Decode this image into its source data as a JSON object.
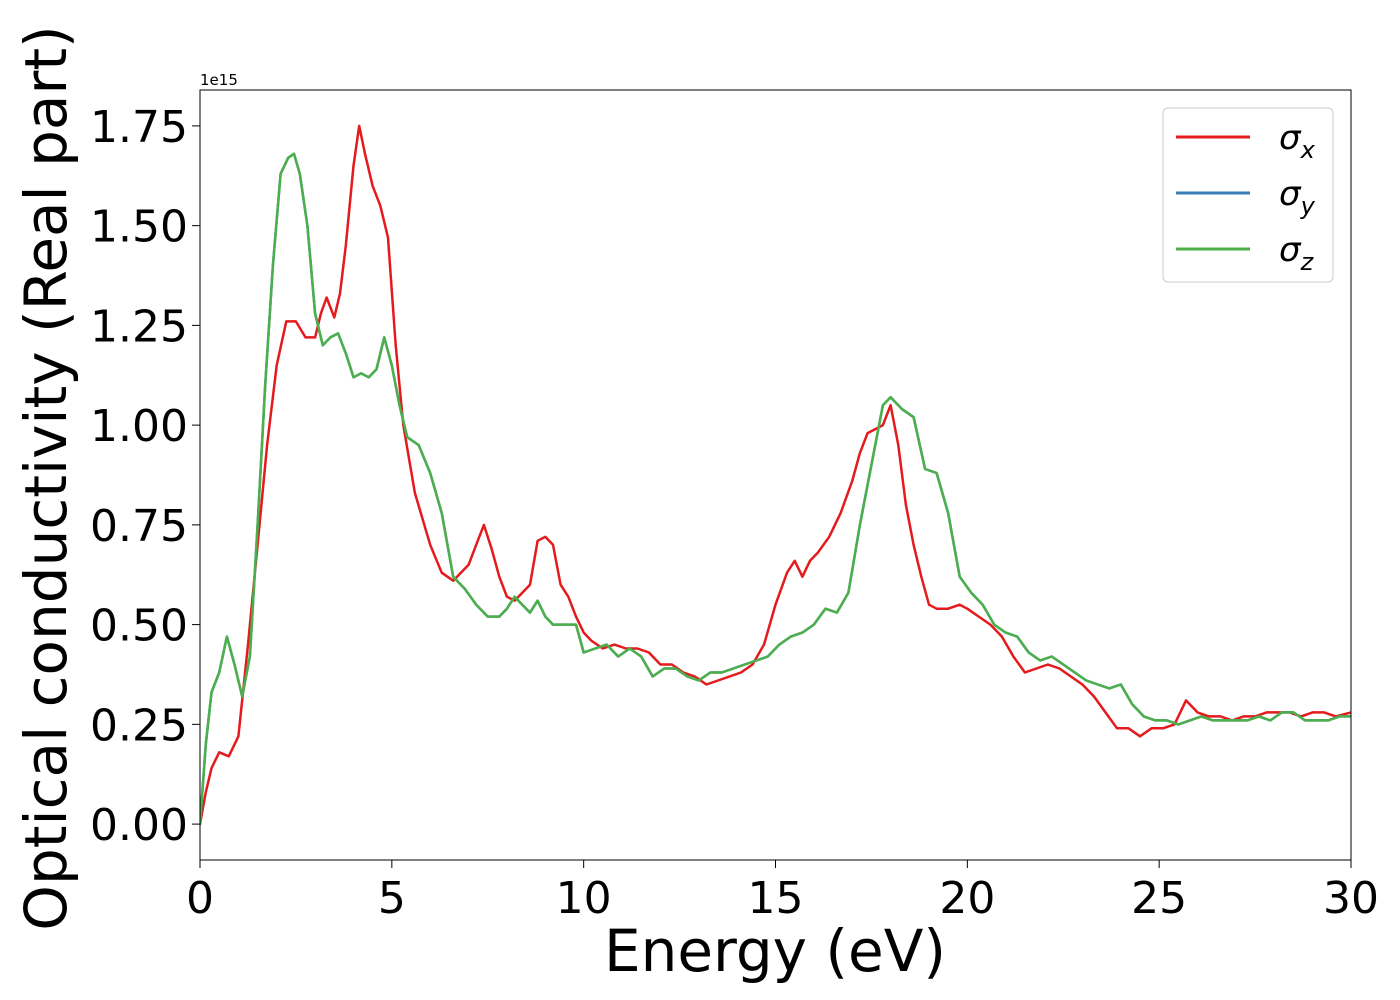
{
  "chart_data": {
    "type": "line",
    "title": "",
    "xlabel": "Energy (eV)",
    "ylabel": "Optical conductivity (Real part)",
    "y_offset_label": "1e15",
    "xlim": [
      0,
      30
    ],
    "ylim": [
      -0.09,
      1.84
    ],
    "x_ticks": [
      0,
      5,
      10,
      15,
      20,
      25,
      30
    ],
    "x_tick_labels": [
      "0",
      "5",
      "10",
      "15",
      "20",
      "25",
      "30"
    ],
    "y_ticks": [
      0.0,
      0.25,
      0.5,
      0.75,
      1.0,
      1.25,
      1.5,
      1.75
    ],
    "y_tick_labels": [
      "0.00",
      "0.25",
      "0.50",
      "0.75",
      "1.00",
      "1.25",
      "1.50",
      "1.75"
    ],
    "grid": false,
    "legend_position": "top-right",
    "series": [
      {
        "name": "σ",
        "subscript": "x",
        "color": "#e41a1c",
        "x": [
          0,
          0.15,
          0.3,
          0.5,
          0.75,
          1.0,
          1.25,
          1.5,
          1.75,
          2.0,
          2.25,
          2.5,
          2.75,
          3.0,
          3.15,
          3.3,
          3.5,
          3.65,
          3.8,
          4.0,
          4.15,
          4.3,
          4.5,
          4.7,
          4.9,
          5.1,
          5.3,
          5.6,
          6.0,
          6.3,
          6.6,
          7.0,
          7.2,
          7.4,
          7.6,
          7.8,
          8.0,
          8.2,
          8.4,
          8.6,
          8.8,
          9.0,
          9.2,
          9.4,
          9.6,
          9.8,
          10.0,
          10.2,
          10.5,
          10.8,
          11.1,
          11.4,
          11.7,
          12.0,
          12.3,
          12.6,
          12.9,
          13.2,
          13.5,
          13.8,
          14.1,
          14.4,
          14.7,
          15.0,
          15.3,
          15.5,
          15.7,
          15.9,
          16.1,
          16.4,
          16.7,
          17.0,
          17.2,
          17.4,
          17.6,
          17.8,
          18.0,
          18.2,
          18.4,
          18.6,
          18.8,
          19.0,
          19.2,
          19.5,
          19.8,
          20.0,
          20.3,
          20.6,
          20.9,
          21.2,
          21.5,
          21.8,
          22.1,
          22.4,
          22.7,
          23.0,
          23.3,
          23.6,
          23.9,
          24.2,
          24.5,
          24.8,
          25.1,
          25.4,
          25.7,
          26.0,
          26.3,
          26.6,
          26.9,
          27.2,
          27.5,
          27.8,
          28.1,
          28.4,
          28.7,
          29.0,
          29.3,
          29.6,
          30.0
        ],
        "values": [
          0.0,
          0.08,
          0.14,
          0.18,
          0.17,
          0.22,
          0.45,
          0.7,
          0.95,
          1.15,
          1.26,
          1.26,
          1.22,
          1.22,
          1.28,
          1.32,
          1.27,
          1.33,
          1.45,
          1.65,
          1.75,
          1.68,
          1.6,
          1.55,
          1.47,
          1.2,
          1.0,
          0.83,
          0.7,
          0.63,
          0.61,
          0.65,
          0.7,
          0.75,
          0.69,
          0.62,
          0.57,
          0.56,
          0.58,
          0.6,
          0.71,
          0.72,
          0.7,
          0.6,
          0.57,
          0.52,
          0.48,
          0.46,
          0.44,
          0.45,
          0.44,
          0.44,
          0.43,
          0.4,
          0.4,
          0.38,
          0.37,
          0.35,
          0.36,
          0.37,
          0.38,
          0.4,
          0.45,
          0.55,
          0.63,
          0.66,
          0.62,
          0.66,
          0.68,
          0.72,
          0.78,
          0.86,
          0.93,
          0.98,
          0.99,
          1.0,
          1.05,
          0.95,
          0.8,
          0.7,
          0.62,
          0.55,
          0.54,
          0.54,
          0.55,
          0.54,
          0.52,
          0.5,
          0.47,
          0.42,
          0.38,
          0.39,
          0.4,
          0.39,
          0.37,
          0.35,
          0.32,
          0.28,
          0.24,
          0.24,
          0.22,
          0.24,
          0.24,
          0.25,
          0.31,
          0.28,
          0.27,
          0.27,
          0.26,
          0.27,
          0.27,
          0.28,
          0.28,
          0.28,
          0.27,
          0.28,
          0.28,
          0.27,
          0.28
        ]
      },
      {
        "name": "σ",
        "subscript": "y",
        "color": "#377eb8",
        "x": [
          0,
          0.15,
          0.3,
          0.5,
          0.7,
          0.9,
          1.1,
          1.3,
          1.5,
          1.7,
          1.9,
          2.1,
          2.3,
          2.45,
          2.6,
          2.8,
          3.0,
          3.2,
          3.4,
          3.6,
          3.8,
          4.0,
          4.2,
          4.4,
          4.6,
          4.8,
          5.0,
          5.2,
          5.4,
          5.7,
          6.0,
          6.3,
          6.6,
          6.9,
          7.2,
          7.5,
          7.8,
          8.0,
          8.2,
          8.4,
          8.6,
          8.8,
          9.0,
          9.2,
          9.5,
          9.8,
          10.0,
          10.3,
          10.6,
          10.9,
          11.2,
          11.5,
          11.8,
          12.1,
          12.4,
          12.7,
          13.0,
          13.3,
          13.6,
          13.9,
          14.2,
          14.5,
          14.8,
          15.1,
          15.4,
          15.7,
          16.0,
          16.3,
          16.6,
          16.9,
          17.2,
          17.5,
          17.8,
          18.0,
          18.3,
          18.6,
          18.9,
          19.2,
          19.5,
          19.8,
          20.1,
          20.4,
          20.7,
          21.0,
          21.3,
          21.6,
          21.9,
          22.2,
          22.5,
          22.8,
          23.1,
          23.4,
          23.7,
          24.0,
          24.3,
          24.6,
          24.9,
          25.2,
          25.5,
          25.8,
          26.1,
          26.4,
          26.7,
          27.0,
          27.3,
          27.6,
          27.9,
          28.2,
          28.5,
          28.8,
          29.1,
          29.4,
          29.7,
          30.0
        ],
        "values": [
          0.0,
          0.2,
          0.33,
          0.38,
          0.47,
          0.4,
          0.32,
          0.42,
          0.75,
          1.1,
          1.4,
          1.63,
          1.67,
          1.68,
          1.63,
          1.5,
          1.28,
          1.2,
          1.22,
          1.23,
          1.18,
          1.12,
          1.13,
          1.12,
          1.14,
          1.22,
          1.15,
          1.05,
          0.97,
          0.95,
          0.88,
          0.78,
          0.62,
          0.59,
          0.55,
          0.52,
          0.52,
          0.54,
          0.57,
          0.55,
          0.53,
          0.56,
          0.52,
          0.5,
          0.5,
          0.5,
          0.43,
          0.44,
          0.45,
          0.42,
          0.44,
          0.42,
          0.37,
          0.39,
          0.39,
          0.37,
          0.36,
          0.38,
          0.38,
          0.39,
          0.4,
          0.41,
          0.42,
          0.45,
          0.47,
          0.48,
          0.5,
          0.54,
          0.53,
          0.58,
          0.75,
          0.9,
          1.05,
          1.07,
          1.04,
          1.02,
          0.89,
          0.88,
          0.78,
          0.62,
          0.58,
          0.55,
          0.5,
          0.48,
          0.47,
          0.43,
          0.41,
          0.42,
          0.4,
          0.38,
          0.36,
          0.35,
          0.34,
          0.35,
          0.3,
          0.27,
          0.26,
          0.26,
          0.25,
          0.26,
          0.27,
          0.26,
          0.26,
          0.26,
          0.26,
          0.27,
          0.26,
          0.28,
          0.28,
          0.26,
          0.26,
          0.26,
          0.27,
          0.27
        ]
      },
      {
        "name": "σ",
        "subscript": "z",
        "color": "#4daf4a",
        "x": [
          0,
          0.15,
          0.3,
          0.5,
          0.7,
          0.9,
          1.1,
          1.3,
          1.5,
          1.7,
          1.9,
          2.1,
          2.3,
          2.45,
          2.6,
          2.8,
          3.0,
          3.2,
          3.4,
          3.6,
          3.8,
          4.0,
          4.2,
          4.4,
          4.6,
          4.8,
          5.0,
          5.2,
          5.4,
          5.7,
          6.0,
          6.3,
          6.6,
          6.9,
          7.2,
          7.5,
          7.8,
          8.0,
          8.2,
          8.4,
          8.6,
          8.8,
          9.0,
          9.2,
          9.5,
          9.8,
          10.0,
          10.3,
          10.6,
          10.9,
          11.2,
          11.5,
          11.8,
          12.1,
          12.4,
          12.7,
          13.0,
          13.3,
          13.6,
          13.9,
          14.2,
          14.5,
          14.8,
          15.1,
          15.4,
          15.7,
          16.0,
          16.3,
          16.6,
          16.9,
          17.2,
          17.5,
          17.8,
          18.0,
          18.3,
          18.6,
          18.9,
          19.2,
          19.5,
          19.8,
          20.1,
          20.4,
          20.7,
          21.0,
          21.3,
          21.6,
          21.9,
          22.2,
          22.5,
          22.8,
          23.1,
          23.4,
          23.7,
          24.0,
          24.3,
          24.6,
          24.9,
          25.2,
          25.5,
          25.8,
          26.1,
          26.4,
          26.7,
          27.0,
          27.3,
          27.6,
          27.9,
          28.2,
          28.5,
          28.8,
          29.1,
          29.4,
          29.7,
          30.0
        ],
        "values": [
          0.0,
          0.2,
          0.33,
          0.38,
          0.47,
          0.4,
          0.32,
          0.42,
          0.75,
          1.1,
          1.4,
          1.63,
          1.67,
          1.68,
          1.63,
          1.5,
          1.28,
          1.2,
          1.22,
          1.23,
          1.18,
          1.12,
          1.13,
          1.12,
          1.14,
          1.22,
          1.15,
          1.05,
          0.97,
          0.95,
          0.88,
          0.78,
          0.62,
          0.59,
          0.55,
          0.52,
          0.52,
          0.54,
          0.57,
          0.55,
          0.53,
          0.56,
          0.52,
          0.5,
          0.5,
          0.5,
          0.43,
          0.44,
          0.45,
          0.42,
          0.44,
          0.42,
          0.37,
          0.39,
          0.39,
          0.37,
          0.36,
          0.38,
          0.38,
          0.39,
          0.4,
          0.41,
          0.42,
          0.45,
          0.47,
          0.48,
          0.5,
          0.54,
          0.53,
          0.58,
          0.75,
          0.9,
          1.05,
          1.07,
          1.04,
          1.02,
          0.89,
          0.88,
          0.78,
          0.62,
          0.58,
          0.55,
          0.5,
          0.48,
          0.47,
          0.43,
          0.41,
          0.42,
          0.4,
          0.38,
          0.36,
          0.35,
          0.34,
          0.35,
          0.3,
          0.27,
          0.26,
          0.26,
          0.25,
          0.26,
          0.27,
          0.26,
          0.26,
          0.26,
          0.26,
          0.27,
          0.26,
          0.28,
          0.28,
          0.26,
          0.26,
          0.26,
          0.27,
          0.27
        ]
      }
    ]
  }
}
